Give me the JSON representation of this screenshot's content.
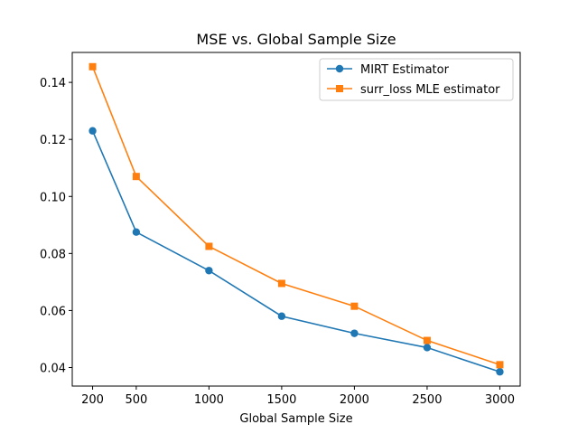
{
  "chart_data": {
    "type": "line",
    "title": "MSE vs. Global Sample Size",
    "xlabel": "Global Sample Size",
    "ylabel": "",
    "x": [
      200,
      500,
      1000,
      1500,
      2000,
      2500,
      3000
    ],
    "xticks": [
      200,
      500,
      1000,
      1500,
      2000,
      2500,
      3000
    ],
    "xlim": [
      60,
      3140
    ],
    "yticks": [
      0.04,
      0.06,
      0.08,
      0.1,
      0.12,
      0.14
    ],
    "ytick_labels": [
      "0.04",
      "0.06",
      "0.08",
      "0.10",
      "0.12",
      "0.14"
    ],
    "ylim": [
      0.0335,
      0.1505
    ],
    "grid": false,
    "legend_position": "top-right",
    "series": [
      {
        "name": "MIRT Estimator",
        "color": "#1f77b4",
        "marker": "circle",
        "values": [
          0.123,
          0.0875,
          0.074,
          0.058,
          0.052,
          0.047,
          0.0385
        ]
      },
      {
        "name": "surr_loss MLE estimator",
        "color": "#ff7f0e",
        "marker": "square",
        "values": [
          0.1455,
          0.107,
          0.0825,
          0.0695,
          0.0615,
          0.0495,
          0.041
        ]
      }
    ]
  }
}
